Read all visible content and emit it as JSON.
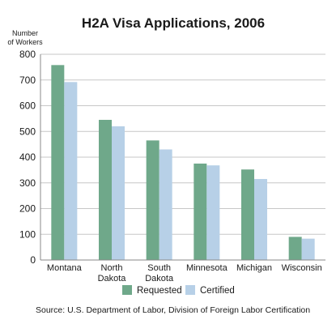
{
  "chart_data": {
    "type": "bar",
    "title": "H2A Visa Applications, 2006",
    "ylabel_lines": [
      "Number",
      "of Workers"
    ],
    "xlabel": "",
    "ylim": [
      0,
      800
    ],
    "yticks": [
      0,
      100,
      200,
      300,
      400,
      500,
      600,
      700,
      800
    ],
    "grid": true,
    "categories": [
      "Montana",
      "North Dakota",
      "South Dakota",
      "Minnesota",
      "Michigan",
      "Wisconsin"
    ],
    "category_label_lines": [
      [
        "Montana"
      ],
      [
        "North",
        "Dakota"
      ],
      [
        "South",
        "Dakota"
      ],
      [
        "Minnesota"
      ],
      [
        "Michigan"
      ],
      [
        "Wisconsin"
      ]
    ],
    "series": [
      {
        "name": "Requested",
        "color": "#6fa88a",
        "values": [
          758,
          545,
          465,
          375,
          352,
          90
        ]
      },
      {
        "name": "Certified",
        "color": "#b7d0e7",
        "values": [
          692,
          520,
          430,
          368,
          315,
          83
        ]
      }
    ],
    "legend": "bottom-center",
    "source": "Source: U.S. Department of Labor, Division of Foreign Labor Certification"
  },
  "colors": {
    "grid": "#c7c7c7",
    "axis": "#888888",
    "text": "#1a1a1a"
  }
}
